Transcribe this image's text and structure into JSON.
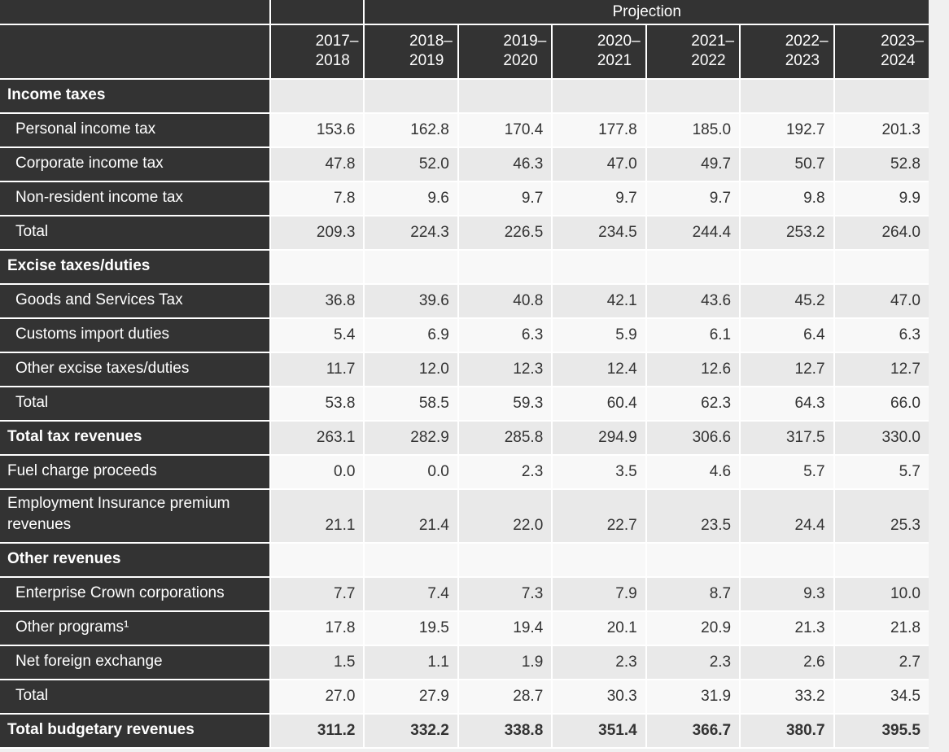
{
  "page": {
    "background": "#f0f0f0"
  },
  "table": {
    "projection_label": "Projection",
    "columns": [
      "2017–\n2018",
      "2018–\n2019",
      "2019–\n2020",
      "2020–\n2021",
      "2021–\n2022",
      "2022–\n2023",
      "2023–\n2024"
    ],
    "rows": [
      {
        "label": "Income taxes",
        "style": "section",
        "values": [
          "",
          "",
          "",
          "",
          "",
          "",
          ""
        ]
      },
      {
        "label": "Personal income tax",
        "style": "indent",
        "values": [
          "153.6",
          "162.8",
          "170.4",
          "177.8",
          "185.0",
          "192.7",
          "201.3"
        ]
      },
      {
        "label": "Corporate income tax",
        "style": "indent",
        "values": [
          "47.8",
          "52.0",
          "46.3",
          "47.0",
          "49.7",
          "50.7",
          "52.8"
        ]
      },
      {
        "label": "Non-resident income tax",
        "style": "indent",
        "values": [
          "7.8",
          "9.6",
          "9.7",
          "9.7",
          "9.7",
          "9.8",
          "9.9"
        ]
      },
      {
        "label": "Total",
        "style": "indent",
        "values": [
          "209.3",
          "224.3",
          "226.5",
          "234.5",
          "244.4",
          "253.2",
          "264.0"
        ]
      },
      {
        "label": "Excise taxes/duties",
        "style": "section",
        "values": [
          "",
          "",
          "",
          "",
          "",
          "",
          ""
        ]
      },
      {
        "label": "Goods and Services Tax",
        "style": "indent",
        "values": [
          "36.8",
          "39.6",
          "40.8",
          "42.1",
          "43.6",
          "45.2",
          "47.0"
        ]
      },
      {
        "label": "Customs import duties",
        "style": "indent",
        "values": [
          "5.4",
          "6.9",
          "6.3",
          "5.9",
          "6.1",
          "6.4",
          "6.3"
        ]
      },
      {
        "label": "Other excise taxes/duties",
        "style": "indent",
        "values": [
          "11.7",
          "12.0",
          "12.3",
          "12.4",
          "12.6",
          "12.7",
          "12.7"
        ]
      },
      {
        "label": "Total",
        "style": "indent",
        "values": [
          "53.8",
          "58.5",
          "59.3",
          "60.4",
          "62.3",
          "64.3",
          "66.0"
        ]
      },
      {
        "label": "Total tax revenues",
        "style": "section",
        "values": [
          "263.1",
          "282.9",
          "285.8",
          "294.9",
          "306.6",
          "317.5",
          "330.0"
        ]
      },
      {
        "label": "Fuel charge proceeds",
        "style": "flush",
        "values": [
          "0.0",
          "0.0",
          "2.3",
          "3.5",
          "4.6",
          "5.7",
          "5.7"
        ]
      },
      {
        "label": "Employment Insurance premium revenues",
        "style": "flush",
        "values": [
          "21.1",
          "21.4",
          "22.0",
          "22.7",
          "23.5",
          "24.4",
          "25.3"
        ]
      },
      {
        "label": "Other revenues",
        "style": "section",
        "values": [
          "",
          "",
          "",
          "",
          "",
          "",
          ""
        ]
      },
      {
        "label": "Enterprise Crown corporations",
        "style": "indent",
        "values": [
          "7.7",
          "7.4",
          "7.3",
          "7.9",
          "8.7",
          "9.3",
          "10.0"
        ]
      },
      {
        "label": "Other programs¹",
        "style": "indent",
        "values": [
          "17.8",
          "19.5",
          "19.4",
          "20.1",
          "20.9",
          "21.3",
          "21.8"
        ]
      },
      {
        "label": "Net foreign exchange",
        "style": "indent",
        "values": [
          "1.5",
          "1.1",
          "1.9",
          "2.3",
          "2.3",
          "2.6",
          "2.7"
        ]
      },
      {
        "label": "Total",
        "style": "indent",
        "values": [
          "27.0",
          "27.9",
          "28.7",
          "30.3",
          "31.9",
          "33.2",
          "34.5"
        ]
      },
      {
        "label": "Total budgetary revenues",
        "style": "grand",
        "values": [
          "311.2",
          "332.2",
          "338.8",
          "351.4",
          "366.7",
          "380.7",
          "395.5"
        ]
      }
    ],
    "colors": {
      "header_bg": "#333333",
      "row_alt": "#e9e9e9",
      "row_main": "#f8f8f8",
      "border": "#ffffff",
      "text_dark": "#333333",
      "text_light": "#ffffff"
    }
  }
}
